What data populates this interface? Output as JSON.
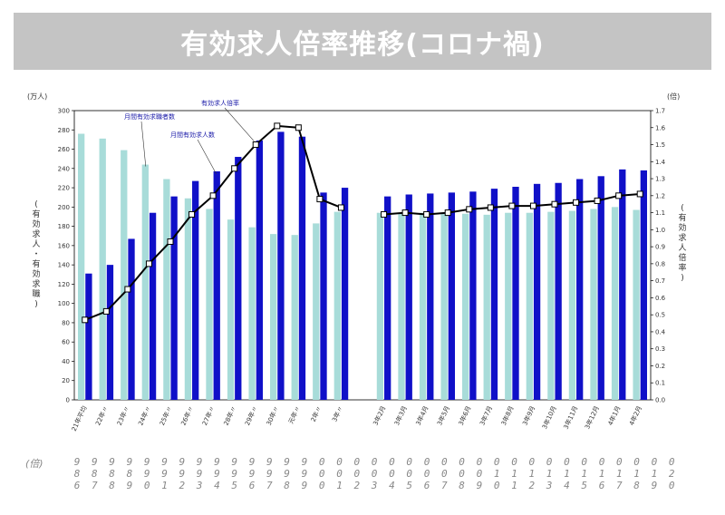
{
  "header": {
    "title": "有効求人倍率推移(コロナ禍)"
  },
  "chart_data": {
    "type": "bar",
    "left_unit": "(万人)",
    "right_unit": "(倍)",
    "left_axis_title": [
      "(",
      "有",
      "効",
      "求",
      "人",
      "・",
      "有",
      "効",
      "求",
      "職",
      ")"
    ],
    "right_axis_title": [
      "(",
      "有",
      "効",
      "求",
      "人",
      "倍",
      "率",
      ")"
    ],
    "left_ylim": [
      0,
      300
    ],
    "left_ticks": [
      0,
      20,
      40,
      60,
      80,
      100,
      120,
      140,
      160,
      180,
      200,
      220,
      240,
      260,
      280,
      300
    ],
    "right_ylim": [
      0,
      1.7
    ],
    "right_ticks": [
      "0.0",
      "0.1",
      "0.2",
      "0.3",
      "0.4",
      "0.5",
      "0.6",
      "0.7",
      "0.8",
      "0.9",
      "1.0",
      "1.1",
      "1.2",
      "1.3",
      "1.4",
      "1.5",
      "1.6",
      "1.7"
    ],
    "categories": [
      "21年平均",
      "22年〃",
      "23年〃",
      "24年〃",
      "25年〃",
      "26年〃",
      "27年〃",
      "28年〃",
      "29年〃",
      "30年〃",
      "元年〃",
      "2年〃",
      "3年〃",
      "",
      "3年2月",
      "3年3月",
      "3年4月",
      "3年5月",
      "3年6月",
      "3年7月",
      "3年8月",
      "3年9月",
      "3年10月",
      "3年11月",
      "3年12月",
      "4年1月",
      "4年2月"
    ],
    "series": [
      {
        "name": "月間有効求職者数",
        "axis": "left",
        "values": [
          276,
          271,
          259,
          244,
          229,
          209,
          198,
          187,
          179,
          172,
          171,
          183,
          195,
          null,
          194,
          193,
          194,
          193,
          193,
          192,
          194,
          194,
          195,
          196,
          198,
          200,
          197
        ]
      },
      {
        "name": "月間有効求人数",
        "axis": "left",
        "values": [
          131,
          140,
          167,
          194,
          211,
          227,
          237,
          252,
          269,
          278,
          273,
          215,
          220,
          null,
          211,
          213,
          214,
          215,
          216,
          219,
          221,
          224,
          225,
          229,
          232,
          239,
          238
        ]
      },
      {
        "name": "有効求人倍率",
        "axis": "right",
        "values": [
          0.47,
          0.52,
          0.65,
          0.8,
          0.93,
          1.09,
          1.2,
          1.36,
          1.5,
          1.61,
          1.6,
          1.18,
          1.13,
          null,
          1.09,
          1.1,
          1.09,
          1.1,
          1.12,
          1.13,
          1.14,
          1.14,
          1.15,
          1.16,
          1.17,
          1.2,
          1.21
        ]
      }
    ]
  },
  "footer": {
    "label": "(倍)",
    "columns": [
      [
        "9",
        "8",
        "6"
      ],
      [
        "9",
        "8",
        "7"
      ],
      [
        "9",
        "8",
        "8"
      ],
      [
        "9",
        "8",
        "9"
      ],
      [
        "9",
        "9",
        "0"
      ],
      [
        "9",
        "9",
        "1"
      ],
      [
        "9",
        "9",
        "2"
      ],
      [
        "9",
        "9",
        "3"
      ],
      [
        "9",
        "9",
        "4"
      ],
      [
        "9",
        "9",
        "5"
      ],
      [
        "9",
        "9",
        "6"
      ],
      [
        "9",
        "9",
        "7"
      ],
      [
        "9",
        "9",
        "8"
      ],
      [
        "9",
        "9",
        "9"
      ],
      [
        "0",
        "0",
        "0"
      ],
      [
        "0",
        "0",
        "1"
      ],
      [
        "0",
        "0",
        "2"
      ],
      [
        "0",
        "0",
        "3"
      ],
      [
        "0",
        "0",
        "4"
      ],
      [
        "0",
        "0",
        "5"
      ],
      [
        "0",
        "0",
        "6"
      ],
      [
        "0",
        "0",
        "7"
      ],
      [
        "0",
        "0",
        "8"
      ],
      [
        "0",
        "0",
        "9"
      ],
      [
        "0",
        "1",
        "0"
      ],
      [
        "0",
        "1",
        "1"
      ],
      [
        "0",
        "1",
        "2"
      ],
      [
        "0",
        "1",
        "3"
      ],
      [
        "0",
        "1",
        "4"
      ],
      [
        "0",
        "1",
        "5"
      ],
      [
        "0",
        "1",
        "6"
      ],
      [
        "0",
        "1",
        "7"
      ],
      [
        "0",
        "1",
        "8"
      ],
      [
        "0",
        "1",
        "9"
      ],
      [
        "0",
        "2",
        "0"
      ]
    ]
  },
  "colors": {
    "jobseekers": "#a8dcd9",
    "openings": "#1010c8",
    "ratio_line": "#000000",
    "axis": "#000000",
    "annotation": "#1a1aa8"
  }
}
